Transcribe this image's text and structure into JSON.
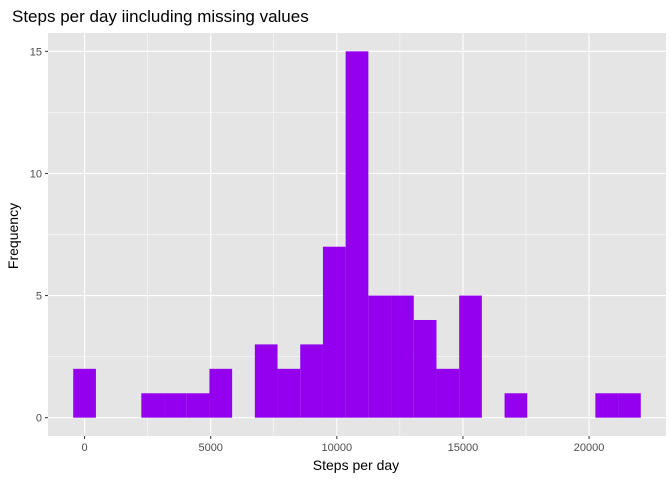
{
  "chart_data": {
    "type": "bar",
    "title": "Steps per day iincluding missing values",
    "xlabel": "Steps per day",
    "ylabel": "Frequency",
    "bin_width": 900,
    "bins": [
      {
        "x_start": -450,
        "x_end": 450,
        "count": 2
      },
      {
        "x_start": 2250,
        "x_end": 3150,
        "count": 1
      },
      {
        "x_start": 3150,
        "x_end": 4050,
        "count": 1
      },
      {
        "x_start": 4050,
        "x_end": 4950,
        "count": 1
      },
      {
        "x_start": 4950,
        "x_end": 5850,
        "count": 2
      },
      {
        "x_start": 6750,
        "x_end": 7650,
        "count": 3
      },
      {
        "x_start": 7650,
        "x_end": 8550,
        "count": 2
      },
      {
        "x_start": 8550,
        "x_end": 9450,
        "count": 3
      },
      {
        "x_start": 9450,
        "x_end": 10350,
        "count": 7
      },
      {
        "x_start": 10350,
        "x_end": 11250,
        "count": 15
      },
      {
        "x_start": 11250,
        "x_end": 12150,
        "count": 5
      },
      {
        "x_start": 12150,
        "x_end": 13050,
        "count": 5
      },
      {
        "x_start": 13050,
        "x_end": 13950,
        "count": 4
      },
      {
        "x_start": 13950,
        "x_end": 14850,
        "count": 2
      },
      {
        "x_start": 14850,
        "x_end": 15750,
        "count": 5
      },
      {
        "x_start": 16650,
        "x_end": 17550,
        "count": 1
      },
      {
        "x_start": 20250,
        "x_end": 21150,
        "count": 1
      },
      {
        "x_start": 21150,
        "x_end": 22050,
        "count": 1
      }
    ],
    "xlim": [
      -1450,
      23050
    ],
    "ylim": [
      -0.75,
      15.75
    ],
    "x_ticks": [
      0,
      5000,
      10000,
      15000,
      20000
    ],
    "x_tick_labels": [
      "0",
      "5000",
      "10000",
      "15000",
      "20000"
    ],
    "y_ticks": [
      0,
      5,
      10,
      15
    ],
    "y_tick_labels": [
      "0",
      "5",
      "10",
      "15"
    ],
    "fill_color": "#9400EE",
    "panel_background": "#E5E5E5",
    "grid_color": "#FFFFFF",
    "grid": true,
    "legend": "none"
  }
}
